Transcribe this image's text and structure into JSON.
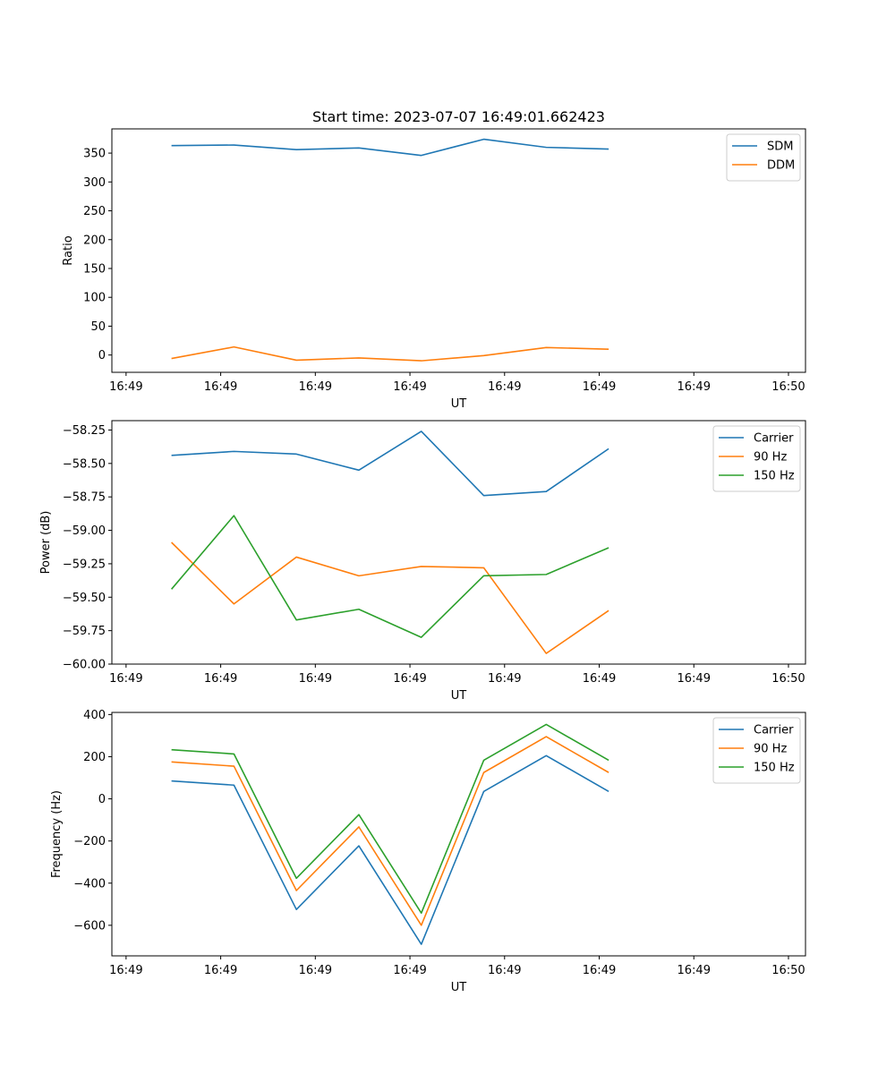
{
  "figure_title": "Start time: 2023-07-07 16:49:01.662423",
  "chart_data": [
    {
      "type": "line",
      "title": "Start time: 2023-07-07 16:49:01.662423",
      "xlabel": "UT",
      "ylabel": "Ratio",
      "x_ticks": [
        "16:49",
        "16:49",
        "16:49",
        "16:49",
        "16:49",
        "16:49",
        "16:49",
        "16:50"
      ],
      "x_tick_seconds": [
        0,
        5,
        10,
        15,
        20,
        25,
        30,
        35
      ],
      "xlim": [
        -0.75,
        35.9
      ],
      "ylim": [
        -30,
        392
      ],
      "y_ticks": [
        0,
        50,
        100,
        150,
        200,
        250,
        300,
        350
      ],
      "x": [
        2.4,
        5.7,
        9.0,
        12.3,
        15.6,
        18.9,
        22.2,
        25.5
      ],
      "legend_position": "top-right",
      "series": [
        {
          "name": "SDM",
          "color": "#1f77b4",
          "values": [
            363,
            364,
            356,
            359,
            346,
            374,
            360,
            357
          ]
        },
        {
          "name": "DDM",
          "color": "#ff7f0e",
          "values": [
            -6,
            14,
            -9,
            -5,
            -10,
            -1,
            13,
            10
          ]
        }
      ]
    },
    {
      "type": "line",
      "title": "",
      "xlabel": "UT",
      "ylabel": "Power (dB)",
      "x_ticks": [
        "16:49",
        "16:49",
        "16:49",
        "16:49",
        "16:49",
        "16:49",
        "16:49",
        "16:50"
      ],
      "x_tick_seconds": [
        0,
        5,
        10,
        15,
        20,
        25,
        30,
        35
      ],
      "xlim": [
        -0.75,
        35.9
      ],
      "ylim": [
        -60.0,
        -58.18
      ],
      "y_ticks": [
        -60.0,
        -59.75,
        -59.5,
        -59.25,
        -59.0,
        -58.75,
        -58.5,
        -58.25
      ],
      "y_tick_labels": [
        "−60.00",
        "−59.75",
        "−59.50",
        "−59.25",
        "−59.00",
        "−58.75",
        "−58.50",
        "−58.25"
      ],
      "x": [
        2.4,
        5.7,
        9.0,
        12.3,
        15.6,
        18.9,
        22.2,
        25.5
      ],
      "legend_position": "top-right",
      "series": [
        {
          "name": "Carrier",
          "color": "#1f77b4",
          "values": [
            -58.44,
            -58.41,
            -58.43,
            -58.55,
            -58.26,
            -58.74,
            -58.71,
            -58.39
          ]
        },
        {
          "name": "90 Hz",
          "color": "#ff7f0e",
          "values": [
            -59.09,
            -59.55,
            -59.2,
            -59.34,
            -59.27,
            -59.28,
            -59.92,
            -59.6
          ]
        },
        {
          "name": "150 Hz",
          "color": "#2ca02c",
          "values": [
            -59.44,
            -58.89,
            -59.67,
            -59.59,
            -59.8,
            -59.34,
            -59.33,
            -59.13
          ]
        }
      ]
    },
    {
      "type": "line",
      "title": "",
      "xlabel": "UT",
      "ylabel": "Frequency (Hz)",
      "x_ticks": [
        "16:49",
        "16:49",
        "16:49",
        "16:49",
        "16:49",
        "16:49",
        "16:49",
        "16:50"
      ],
      "x_tick_seconds": [
        0,
        5,
        10,
        15,
        20,
        25,
        30,
        35
      ],
      "xlim": [
        -0.75,
        35.9
      ],
      "ylim": [
        -745,
        410
      ],
      "y_ticks": [
        -600,
        -400,
        -200,
        0,
        200,
        400
      ],
      "y_tick_labels": [
        "−600",
        "−400",
        "−200",
        "0",
        "200",
        "400"
      ],
      "x": [
        2.4,
        5.7,
        9.0,
        12.3,
        15.6,
        18.9,
        22.2,
        25.5
      ],
      "legend_position": "top-right",
      "series": [
        {
          "name": "Carrier",
          "color": "#1f77b4",
          "values": [
            85,
            65,
            -525,
            -223,
            -690,
            35,
            205,
            35
          ]
        },
        {
          "name": "90 Hz",
          "color": "#ff7f0e",
          "values": [
            175,
            155,
            -435,
            -133,
            -600,
            125,
            295,
            125
          ]
        },
        {
          "name": "150 Hz",
          "color": "#2ca02c",
          "values": [
            233,
            213,
            -377,
            -75,
            -542,
            183,
            353,
            183
          ]
        }
      ]
    }
  ]
}
